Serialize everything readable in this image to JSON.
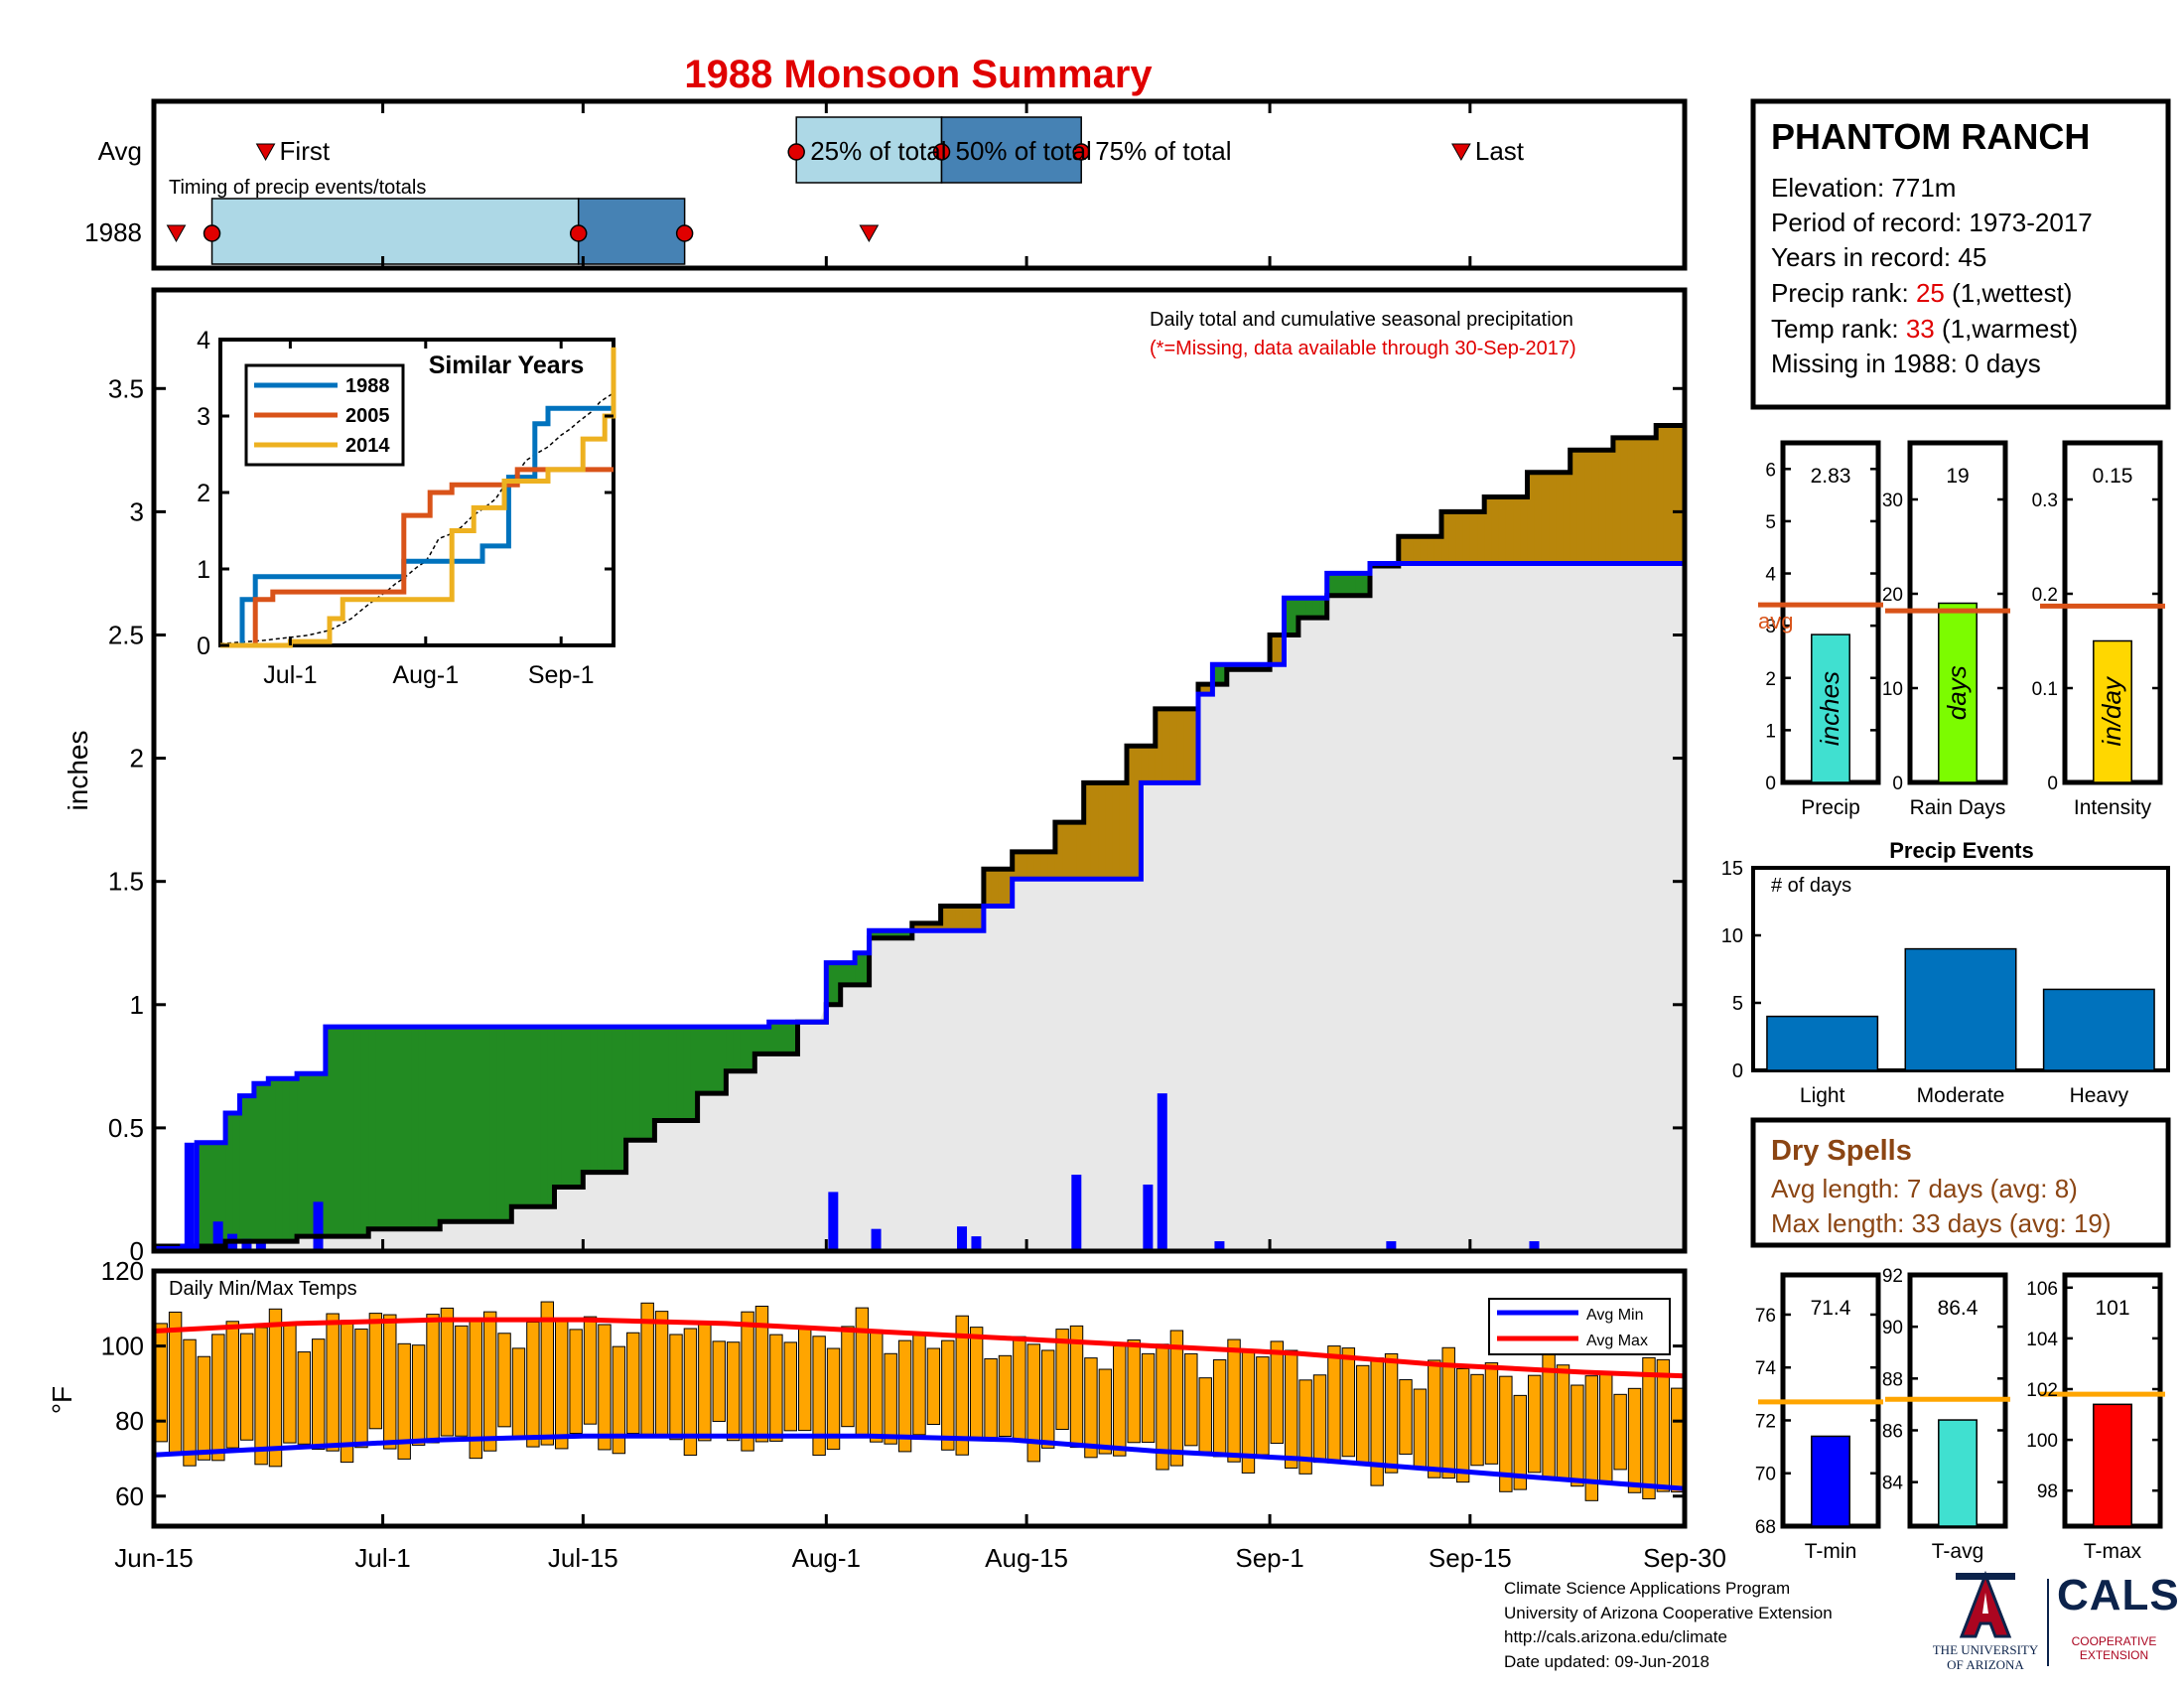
{
  "title": "1988 Monsoon Summary",
  "timing": {
    "row_labels": [
      "Avg",
      "1988"
    ],
    "caption": "Timing of precip events/totals",
    "avg_labels": {
      "first": "First",
      "p25": "25% of total",
      "p50": "50% of total",
      "p75": "75% of total",
      "last": "Last"
    },
    "avg": {
      "first": 10.0,
      "p25": 57.5,
      "p50": 70.5,
      "p75": 83.0,
      "last": 117.0
    },
    "y1988": {
      "first": 2.0,
      "p25": 5.2,
      "p50": 38.0,
      "p75": 47.5,
      "last": 64.0
    },
    "xlim": [
      0,
      137
    ]
  },
  "station": {
    "name": "PHANTOM RANCH",
    "elevation": "Elevation: 771m",
    "period": "Period of record: 1973-2017",
    "years": "Years in record: 45",
    "precip_rank_prefix": "Precip rank: ",
    "precip_rank_value": "25",
    "precip_rank_suffix": " (1,wettest)",
    "temp_rank_prefix": "Temp rank: ",
    "temp_rank_value": "33",
    "temp_rank_suffix": " (1,warmest)",
    "missing": "Missing in 1988: 0 days"
  },
  "main_chart": {
    "note1": "Daily total and cumulative seasonal precipitation",
    "note2": "(*=Missing, data available through 30-Sep-2017)",
    "ylabel": "inches",
    "ylim": [
      0,
      3.9
    ],
    "yticks": [
      "0",
      "0.5",
      "1",
      "1.5",
      "2",
      "2.5",
      "3",
      "3.5"
    ],
    "xticks": [
      "Jun-15",
      "Jul-1",
      "Jul-15",
      "Aug-1",
      "Aug-15",
      "Sep-1",
      "Sep-15",
      "Sep-30"
    ],
    "xtick_days": [
      0,
      16,
      30,
      47,
      61,
      78,
      92,
      107
    ],
    "xlim": [
      0,
      107
    ]
  },
  "temp_chart": {
    "title": "Daily Min/Max Temps",
    "ylabel": "°F",
    "ylim": [
      52,
      120
    ],
    "yticks": [
      "60",
      "80",
      "100",
      "120"
    ],
    "legend": [
      "Avg Min",
      "Avg Max"
    ]
  },
  "inset": {
    "title": "Similar Years",
    "xticks": [
      "Jul-1",
      "Aug-1",
      "Sep-1"
    ],
    "yticks": [
      "0",
      "1",
      "2",
      "3",
      "4"
    ],
    "years": [
      "1988",
      "2005",
      "2014"
    ],
    "colors": [
      "#0072bd",
      "#d95319",
      "#edb120"
    ]
  },
  "summary_bars": [
    {
      "label": "Precip",
      "value_label": "2.83",
      "value": 2.83,
      "avg": 3.4,
      "ymax": 6.5,
      "ticks": [
        "0",
        "1",
        "2",
        "3",
        "4",
        "5",
        "6"
      ],
      "tickvals": [
        0,
        1,
        2,
        3,
        4,
        5,
        6
      ],
      "unit": "inches",
      "color": "#40e0d0",
      "avg_label": "avg"
    },
    {
      "label": "Rain Days",
      "value_label": "19",
      "value": 19,
      "avg": 18.2,
      "ymax": 36,
      "ticks": [
        "0",
        "10",
        "20",
        "30"
      ],
      "tickvals": [
        0,
        10,
        20,
        30
      ],
      "unit": "days",
      "color": "#7cfc00",
      "avg_label": ""
    },
    {
      "label": "Intensity",
      "value_label": "0.15",
      "value": 0.15,
      "avg": 0.187,
      "ymax": 0.36,
      "ticks": [
        "0",
        "0.1",
        "0.2",
        "0.3"
      ],
      "tickvals": [
        0,
        0.1,
        0.2,
        0.3
      ],
      "unit": "in/day",
      "color": "#ffd700",
      "avg_label": ""
    }
  ],
  "precip_events": {
    "title": "Precip Events",
    "ylabel": "# of days",
    "categories": [
      "Light",
      "Moderate",
      "Heavy"
    ],
    "values": [
      4,
      9,
      6
    ],
    "ylim": [
      0,
      15
    ],
    "yticks": [
      "0",
      "5",
      "10",
      "15"
    ]
  },
  "dry_spells": {
    "title": "Dry Spells",
    "avg_length": "Avg length: 7 days (avg: 8)",
    "max_length": "Max length: 33 days (avg: 19)"
  },
  "temp_bars": [
    {
      "label": "T-min",
      "value_label": "71.4",
      "value": 71.4,
      "avg": 72.7,
      "ylim": [
        68,
        77.5
      ],
      "ticks": [
        "68",
        "70",
        "72",
        "74",
        "76"
      ],
      "tickvals": [
        68,
        70,
        72,
        74,
        76
      ],
      "color": "#0000ff"
    },
    {
      "label": "T-avg",
      "value_label": "86.4",
      "value": 86.4,
      "avg": 87.2,
      "ylim": [
        82.3,
        92
      ],
      "ticks": [
        "84",
        "86",
        "88",
        "90",
        "92"
      ],
      "tickvals": [
        84,
        86,
        88,
        90,
        92
      ],
      "color": "#40e0d0"
    },
    {
      "label": "T-max",
      "value_label": "101",
      "value": 101.4,
      "avg": 101.8,
      "ylim": [
        96.6,
        106.5
      ],
      "ticks": [
        "98",
        "100",
        "102",
        "104",
        "106"
      ],
      "tickvals": [
        98,
        100,
        102,
        104,
        106
      ],
      "color": "#ff0000"
    }
  ],
  "footer": {
    "line1": "Climate Science Applications Program",
    "line2": "University of Arizona Cooperative Extension",
    "line3": "http://cals.arizona.edu/climate",
    "line4": " Date updated: 09-Jun-2018"
  },
  "logos": {
    "ua_line1": "THE UNIVERSITY",
    "ua_line2": "OF ARIZONA",
    "cals": "CALS",
    "cals_line1": "COOPERATIVE",
    "cals_line2": "EXTENSION"
  },
  "chart_data": {
    "type": "area",
    "title": "1988 Monsoon Summary",
    "xlabel": "",
    "ylabel": "inches",
    "ylim": [
      0,
      3.9
    ],
    "x_unit": "days since Jun-15",
    "cumulative_1988": [
      [
        0,
        0.01
      ],
      [
        2,
        0.02
      ],
      [
        3,
        0.44
      ],
      [
        5,
        0.56
      ],
      [
        6,
        0.63
      ],
      [
        7,
        0.68
      ],
      [
        8,
        0.7
      ],
      [
        10,
        0.72
      ],
      [
        11,
        0.72
      ],
      [
        12,
        0.91
      ],
      [
        40,
        0.91
      ],
      [
        43,
        0.93
      ],
      [
        46,
        0.93
      ],
      [
        47,
        1.17
      ],
      [
        49,
        1.21
      ],
      [
        50,
        1.3
      ],
      [
        57,
        1.3
      ],
      [
        58,
        1.4
      ],
      [
        60,
        1.51
      ],
      [
        68,
        1.51
      ],
      [
        69,
        1.9
      ],
      [
        72,
        1.9
      ],
      [
        73,
        2.26
      ],
      [
        74,
        2.38
      ],
      [
        75,
        2.38
      ],
      [
        79,
        2.65
      ],
      [
        82,
        2.75
      ],
      [
        85,
        2.79
      ],
      [
        100,
        2.79
      ],
      [
        107,
        2.83
      ]
    ],
    "cumulative_avg": [
      [
        0,
        0.02
      ],
      [
        5,
        0.04
      ],
      [
        10,
        0.06
      ],
      [
        15,
        0.09
      ],
      [
        20,
        0.12
      ],
      [
        25,
        0.18
      ],
      [
        28,
        0.26
      ],
      [
        30,
        0.32
      ],
      [
        33,
        0.45
      ],
      [
        35,
        0.53
      ],
      [
        38,
        0.64
      ],
      [
        40,
        0.73
      ],
      [
        42,
        0.8
      ],
      [
        45,
        0.93
      ],
      [
        47,
        1.0
      ],
      [
        48,
        1.08
      ],
      [
        50,
        1.27
      ],
      [
        53,
        1.33
      ],
      [
        55,
        1.4
      ],
      [
        58,
        1.55
      ],
      [
        60,
        1.62
      ],
      [
        63,
        1.74
      ],
      [
        65,
        1.9
      ],
      [
        68,
        2.05
      ],
      [
        70,
        2.2
      ],
      [
        73,
        2.3
      ],
      [
        75,
        2.36
      ],
      [
        78,
        2.5
      ],
      [
        80,
        2.57
      ],
      [
        82,
        2.66
      ],
      [
        85,
        2.78
      ],
      [
        87,
        2.9
      ],
      [
        90,
        3.0
      ],
      [
        93,
        3.06
      ],
      [
        96,
        3.16
      ],
      [
        99,
        3.25
      ],
      [
        102,
        3.3
      ],
      [
        105,
        3.35
      ],
      [
        107,
        3.37
      ]
    ],
    "daily_precip": [
      [
        2,
        0.44
      ],
      [
        4,
        0.12
      ],
      [
        5,
        0.07
      ],
      [
        6,
        0.05
      ],
      [
        7,
        0.04
      ],
      [
        11,
        0.2
      ],
      [
        44,
        0.01
      ],
      [
        47,
        0.24
      ],
      [
        50,
        0.09
      ],
      [
        56,
        0.1
      ],
      [
        57,
        0.06
      ],
      [
        64,
        0.31
      ],
      [
        69,
        0.27
      ],
      [
        70,
        0.64
      ],
      [
        74,
        0.04
      ],
      [
        86,
        0.04
      ],
      [
        96,
        0.04
      ]
    ],
    "temp_max_avg": [
      [
        0,
        104
      ],
      [
        10,
        106
      ],
      [
        20,
        107
      ],
      [
        30,
        107
      ],
      [
        40,
        106
      ],
      [
        50,
        104
      ],
      [
        60,
        102
      ],
      [
        70,
        100
      ],
      [
        80,
        98
      ],
      [
        90,
        95
      ],
      [
        100,
        93
      ],
      [
        107,
        92
      ]
    ],
    "temp_min_avg": [
      [
        0,
        71
      ],
      [
        10,
        73
      ],
      [
        20,
        75
      ],
      [
        30,
        76
      ],
      [
        40,
        76
      ],
      [
        50,
        76
      ],
      [
        60,
        75
      ],
      [
        70,
        72
      ],
      [
        80,
        70
      ],
      [
        90,
        67
      ],
      [
        100,
        64
      ],
      [
        107,
        62
      ]
    ],
    "summary": {
      "precip_in": 2.83,
      "rain_days": 19,
      "intensity_in_per_day": 0.15,
      "tmin": 71.4,
      "tavg": 86.4,
      "tmax": 101
    },
    "precip_events": {
      "categories": [
        "Light",
        "Moderate",
        "Heavy"
      ],
      "values": [
        4,
        9,
        6
      ]
    },
    "similar_years": {
      "1988": [
        [
          0,
          0
        ],
        [
          5,
          0.6
        ],
        [
          8,
          0.9
        ],
        [
          38,
          0.9
        ],
        [
          42,
          1.1
        ],
        [
          60,
          1.3
        ],
        [
          66,
          2.2
        ],
        [
          72,
          2.9
        ],
        [
          75,
          3.1
        ],
        [
          86,
          3.1
        ],
        [
          90,
          3.2
        ]
      ],
      "2005": [
        [
          0,
          0
        ],
        [
          8,
          0.6
        ],
        [
          12,
          0.7
        ],
        [
          38,
          0.7
        ],
        [
          42,
          1.7
        ],
        [
          48,
          2.0
        ],
        [
          53,
          2.1
        ],
        [
          68,
          2.3
        ],
        [
          76,
          2.3
        ],
        [
          90,
          2.3
        ]
      ],
      "2014": [
        [
          0,
          0
        ],
        [
          16,
          0.05
        ],
        [
          25,
          0.35
        ],
        [
          28,
          0.6
        ],
        [
          45,
          0.6
        ],
        [
          53,
          1.5
        ],
        [
          58,
          1.8
        ],
        [
          65,
          2.15
        ],
        [
          75,
          2.3
        ],
        [
          83,
          2.7
        ],
        [
          88,
          3.0
        ],
        [
          90,
          3.9
        ]
      ]
    }
  }
}
